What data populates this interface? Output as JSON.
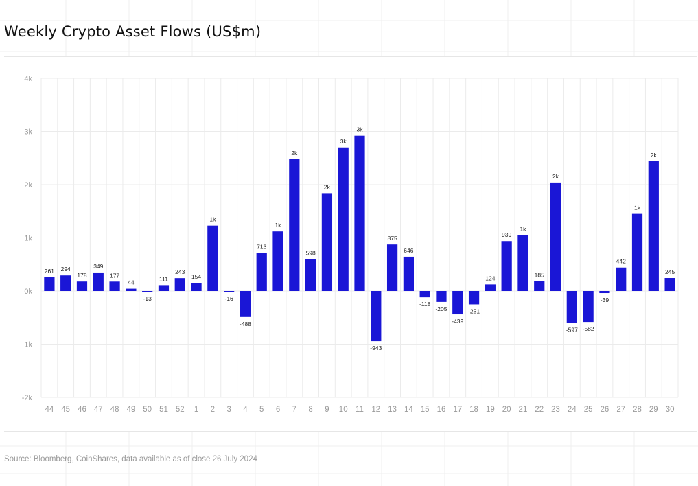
{
  "title": "Weekly Crypto Asset Flows (US$m)",
  "source": "Source: Bloomberg, CoinShares, data available as of close 26 July 2024",
  "colors": {
    "bar": "#1a16d6",
    "grid": "#ebebeb",
    "tick_text": "#9a9a9a",
    "label_text": "#222222"
  },
  "chart_data": {
    "type": "bar",
    "title": "Weekly Crypto Asset Flows (US$m)",
    "xlabel": "",
    "ylabel": "",
    "ylim": [
      -2000,
      4000
    ],
    "yticks": [
      -2000,
      -1000,
      0,
      1000,
      2000,
      3000,
      4000
    ],
    "ytick_labels": [
      "-2k",
      "-1k",
      "0k",
      "1k",
      "2k",
      "3k",
      "4k"
    ],
    "grid": true,
    "categories": [
      "44",
      "45",
      "46",
      "47",
      "48",
      "49",
      "50",
      "51",
      "52",
      "1",
      "2",
      "3",
      "4",
      "5",
      "6",
      "7",
      "8",
      "9",
      "10",
      "11",
      "12",
      "13",
      "14",
      "15",
      "16",
      "17",
      "18",
      "19",
      "20",
      "21",
      "22",
      "23",
      "24",
      "25",
      "26",
      "27",
      "28",
      "29",
      "30"
    ],
    "values": [
      261,
      294,
      178,
      349,
      177,
      44,
      -13,
      111,
      243,
      154,
      1230,
      -16,
      -488,
      713,
      1120,
      2480,
      598,
      1840,
      2700,
      2920,
      -943,
      875,
      646,
      -118,
      -205,
      -439,
      -251,
      124,
      939,
      1050,
      185,
      2040,
      -597,
      -582,
      -39,
      442,
      1450,
      2440,
      245
    ],
    "data_labels": [
      "261",
      "294",
      "178",
      "349",
      "177",
      "44",
      "-13",
      "111",
      "243",
      "154",
      "1k",
      "-16",
      "-488",
      "713",
      "1k",
      "2k",
      "598",
      "2k",
      "3k",
      "3k",
      "-943",
      "875",
      "646",
      "-118",
      "-205",
      "-439",
      "-251",
      "124",
      "939",
      "1k",
      "185",
      "2k",
      "-597",
      "-582",
      "-39",
      "442",
      "1k",
      "2k",
      "245"
    ]
  }
}
